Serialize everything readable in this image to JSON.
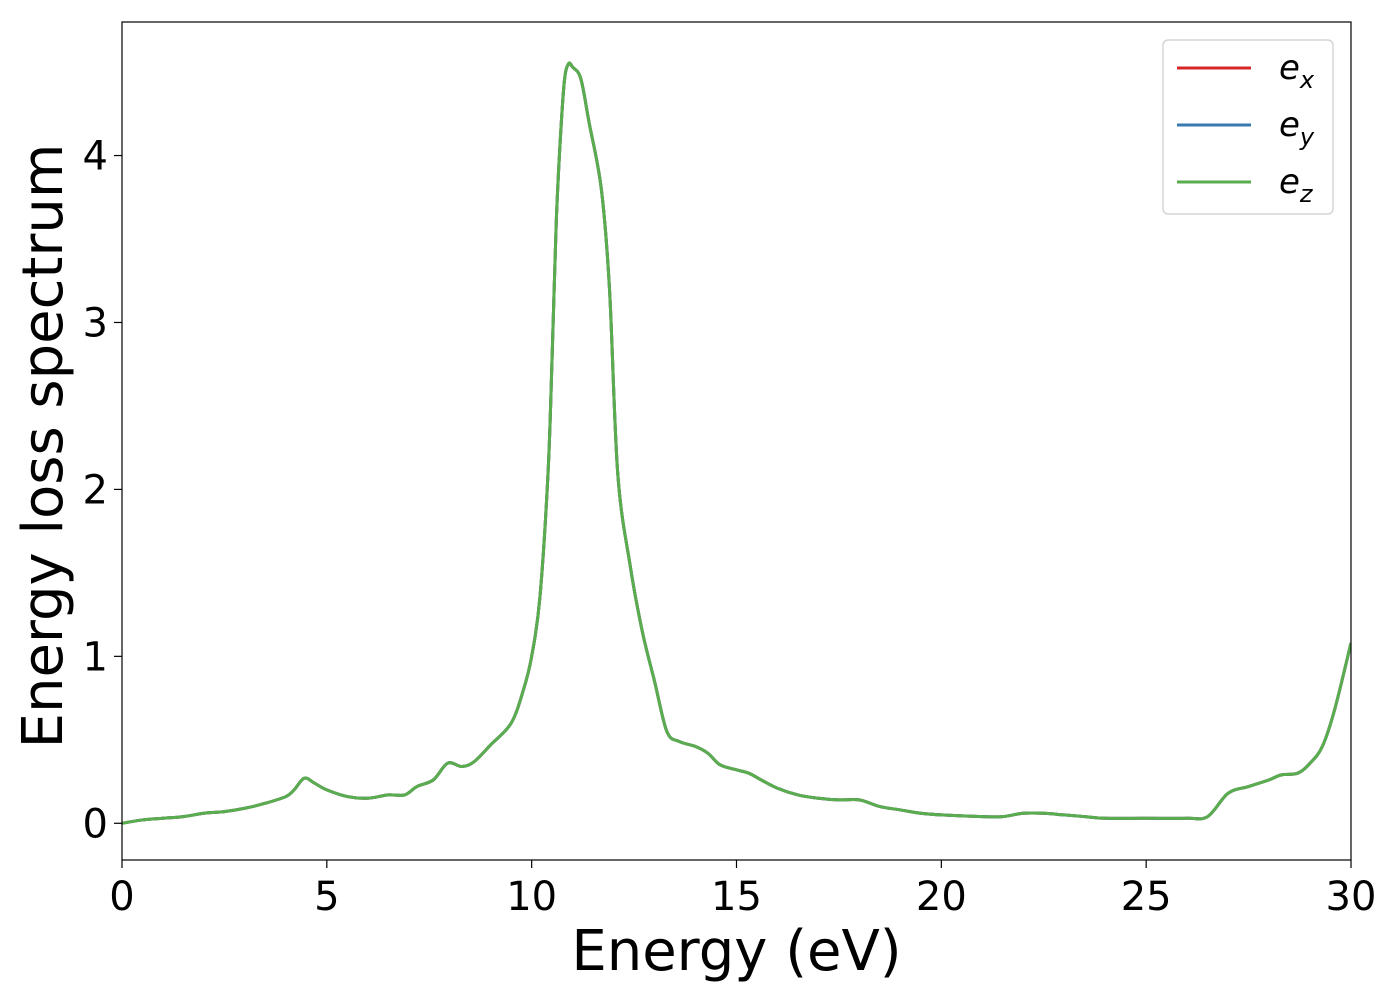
{
  "chart_data": {
    "type": "line",
    "title": "",
    "xlabel": "Energy (eV)",
    "ylabel": "Energy loss spectrum",
    "xlim": [
      0,
      30
    ],
    "ylim": [
      -0.22,
      4.8
    ],
    "xticks": [
      0,
      5,
      10,
      15,
      20,
      25,
      30
    ],
    "yticks": [
      0,
      1,
      2,
      3,
      4
    ],
    "grid": false,
    "legend": "top-right",
    "x": [
      0,
      0.5,
      1,
      1.5,
      2,
      2.5,
      3,
      3.5,
      4,
      4.2,
      4.45,
      4.7,
      5,
      5.5,
      6,
      6.5,
      6.9,
      7.2,
      7.6,
      7.95,
      8.3,
      8.6,
      9,
      9.5,
      9.8,
      10,
      10.2,
      10.4,
      10.5,
      10.6,
      10.7,
      10.8,
      10.9,
      11.0,
      11.2,
      11.4,
      11.7,
      11.9,
      12.1,
      12.4,
      12.7,
      13.0,
      13.3,
      13.6,
      14.0,
      14.3,
      14.6,
      15.0,
      15.3,
      15.6,
      16.0,
      16.5,
      17.0,
      17.5,
      18.0,
      18.5,
      19.0,
      19.5,
      20.0,
      21.0,
      21.5,
      22.0,
      22.5,
      23.0,
      23.5,
      24.0,
      25.0,
      26.0,
      26.5,
      27.0,
      27.5,
      28.0,
      28.3,
      28.7,
      29.0,
      29.3,
      29.6,
      30.0
    ],
    "series": [
      {
        "name": "e_x",
        "label_base": "e",
        "label_sub": "x",
        "color": "#d62728",
        "values": [
          0.0,
          0.02,
          0.03,
          0.04,
          0.06,
          0.07,
          0.09,
          0.12,
          0.16,
          0.2,
          0.27,
          0.24,
          0.2,
          0.16,
          0.15,
          0.17,
          0.17,
          0.22,
          0.26,
          0.36,
          0.34,
          0.37,
          0.47,
          0.6,
          0.8,
          1.0,
          1.35,
          2.1,
          2.8,
          3.6,
          4.1,
          4.45,
          4.55,
          4.53,
          4.46,
          4.2,
          3.8,
          3.2,
          2.1,
          1.55,
          1.15,
          0.85,
          0.55,
          0.49,
          0.46,
          0.42,
          0.35,
          0.32,
          0.3,
          0.26,
          0.21,
          0.17,
          0.15,
          0.14,
          0.14,
          0.1,
          0.08,
          0.06,
          0.05,
          0.04,
          0.04,
          0.06,
          0.06,
          0.05,
          0.04,
          0.03,
          0.03,
          0.03,
          0.04,
          0.18,
          0.22,
          0.26,
          0.29,
          0.3,
          0.36,
          0.46,
          0.68,
          1.08
        ]
      },
      {
        "name": "e_y",
        "label_base": "e",
        "label_sub": "y",
        "color": "#3a78b0",
        "values": [
          0.0,
          0.02,
          0.03,
          0.04,
          0.06,
          0.07,
          0.09,
          0.12,
          0.16,
          0.2,
          0.27,
          0.24,
          0.2,
          0.16,
          0.15,
          0.17,
          0.17,
          0.22,
          0.26,
          0.36,
          0.34,
          0.37,
          0.47,
          0.6,
          0.8,
          1.0,
          1.35,
          2.1,
          2.8,
          3.6,
          4.1,
          4.45,
          4.55,
          4.53,
          4.46,
          4.2,
          3.8,
          3.2,
          2.1,
          1.55,
          1.15,
          0.85,
          0.55,
          0.49,
          0.46,
          0.42,
          0.35,
          0.32,
          0.3,
          0.26,
          0.21,
          0.17,
          0.15,
          0.14,
          0.14,
          0.1,
          0.08,
          0.06,
          0.05,
          0.04,
          0.04,
          0.06,
          0.06,
          0.05,
          0.04,
          0.03,
          0.03,
          0.03,
          0.04,
          0.18,
          0.22,
          0.26,
          0.29,
          0.3,
          0.36,
          0.46,
          0.68,
          1.08
        ]
      },
      {
        "name": "e_z",
        "label_base": "e",
        "label_sub": "z",
        "color": "#5aad4e",
        "values": [
          0.0,
          0.02,
          0.03,
          0.04,
          0.06,
          0.07,
          0.09,
          0.12,
          0.16,
          0.2,
          0.27,
          0.24,
          0.2,
          0.16,
          0.15,
          0.17,
          0.17,
          0.22,
          0.26,
          0.36,
          0.34,
          0.37,
          0.47,
          0.6,
          0.8,
          1.0,
          1.35,
          2.1,
          2.8,
          3.6,
          4.1,
          4.45,
          4.55,
          4.53,
          4.46,
          4.2,
          3.8,
          3.2,
          2.1,
          1.55,
          1.15,
          0.85,
          0.55,
          0.49,
          0.46,
          0.42,
          0.35,
          0.32,
          0.3,
          0.26,
          0.21,
          0.17,
          0.15,
          0.14,
          0.14,
          0.1,
          0.08,
          0.06,
          0.05,
          0.04,
          0.04,
          0.06,
          0.06,
          0.05,
          0.04,
          0.03,
          0.03,
          0.03,
          0.04,
          0.18,
          0.22,
          0.26,
          0.29,
          0.3,
          0.36,
          0.46,
          0.68,
          1.08
        ]
      }
    ]
  }
}
